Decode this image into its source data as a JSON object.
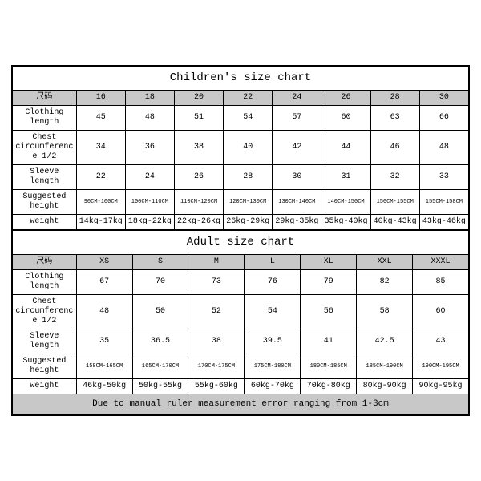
{
  "children": {
    "title": "Children's size chart",
    "label_col": "尺码",
    "sizes": [
      "16",
      "18",
      "20",
      "22",
      "24",
      "26",
      "28",
      "30"
    ],
    "rows": [
      {
        "label": "Clothing length",
        "vals": [
          "45",
          "48",
          "51",
          "54",
          "57",
          "60",
          "63",
          "66"
        ]
      },
      {
        "label": "Chest circumference 1/2",
        "vals": [
          "34",
          "36",
          "38",
          "40",
          "42",
          "44",
          "46",
          "48"
        ]
      },
      {
        "label": "Sleeve length",
        "vals": [
          "22",
          "24",
          "26",
          "28",
          "30",
          "31",
          "32",
          "33"
        ]
      },
      {
        "label": "Suggested height",
        "vals": [
          "90CM-100CM",
          "100CM-110CM",
          "110CM-120CM",
          "120CM-130CM",
          "130CM-140CM",
          "140CM-150CM",
          "150CM-155CM",
          "155CM-158CM"
        ],
        "tiny": true
      },
      {
        "label": "weight",
        "vals": [
          "14kg-17kg",
          "18kg-22kg",
          "22kg-26kg",
          "26kg-29kg",
          "29kg-35kg",
          "35kg-40kg",
          "40kg-43kg",
          "43kg-46kg"
        ]
      }
    ]
  },
  "adult": {
    "title": "Adult size chart",
    "label_col": "尺码",
    "sizes": [
      "XS",
      "S",
      "M",
      "L",
      "XL",
      "XXL",
      "XXXL"
    ],
    "rows": [
      {
        "label": "Clothing length",
        "vals": [
          "67",
          "70",
          "73",
          "76",
          "79",
          "82",
          "85"
        ]
      },
      {
        "label": "Chest circumference 1/2",
        "vals": [
          "48",
          "50",
          "52",
          "54",
          "56",
          "58",
          "60"
        ]
      },
      {
        "label": "Sleeve length",
        "vals": [
          "35",
          "36.5",
          "38",
          "39.5",
          "41",
          "42.5",
          "43"
        ]
      },
      {
        "label": "Suggested height",
        "vals": [
          "158CM-165CM",
          "165CM-170CM",
          "170CM-175CM",
          "175CM-180CM",
          "180CM-185CM",
          "185CM-190CM",
          "190CM-195CM"
        ],
        "tiny": true
      },
      {
        "label": "weight",
        "vals": [
          "46kg-50kg",
          "50kg-55kg",
          "55kg-60kg",
          "60kg-70kg",
          "70kg-80kg",
          "80kg-90kg",
          "90kg-95kg"
        ]
      }
    ]
  },
  "note": "Due to manual ruler measurement error ranging from 1-3cm",
  "style": {
    "header_bg": "#c8c8c8",
    "note_bg": "#c8c8c8",
    "border_color": "#000000",
    "bg": "#ffffff"
  }
}
